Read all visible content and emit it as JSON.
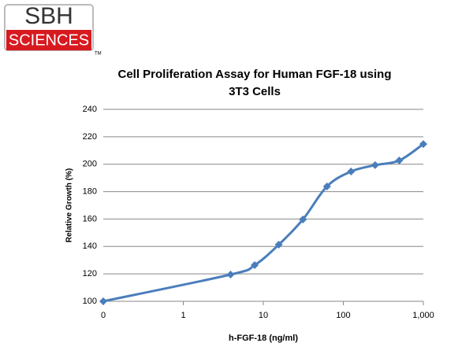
{
  "logo": {
    "top": "SBH",
    "bottom": "SCIENCES",
    "mark": "TM"
  },
  "chart_data": {
    "type": "line",
    "title": "Cell Proliferation Assay for Human FGF-18 using",
    "subtitle": "3T3 Cells",
    "x_label": "h-FGF-18 (ng/ml)",
    "y_label": "Relative Growth (%)",
    "x": [
      0.1,
      3.9,
      7.8,
      15.6,
      31.25,
      62.5,
      125,
      250,
      500,
      1000
    ],
    "series": [
      {
        "name": "Relative Growth",
        "color": "#4a7ebb",
        "values": [
          100,
          119.5,
          126.4,
          141.3,
          159.7,
          183.8,
          194.7,
          199.3,
          202.7,
          214.7
        ]
      }
    ],
    "xscale": "log",
    "xlim": [
      0.1,
      1000
    ],
    "xticks": [
      {
        "value": 0.1,
        "label": "0"
      },
      1,
      10,
      100,
      {
        "value": 1000,
        "label": "1,000"
      }
    ],
    "ylim": [
      100,
      240
    ],
    "yticks": [
      100,
      120,
      140,
      160,
      180,
      200,
      220,
      240
    ],
    "grid": true
  }
}
